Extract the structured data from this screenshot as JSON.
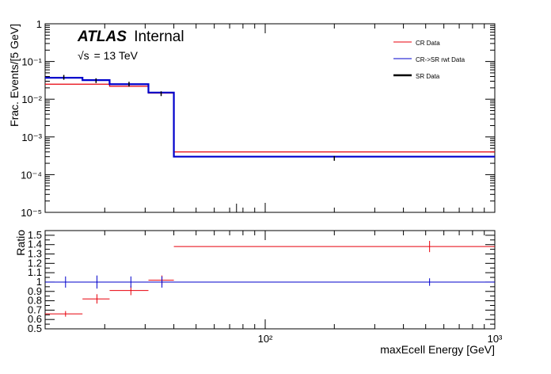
{
  "header": {
    "atlas_label": "ATLAS",
    "atlas_status": "Internal",
    "energy_sqrt": "√s",
    "energy_value": "= 13 TeV"
  },
  "chart_data": [
    {
      "type": "line",
      "style": "step-histogram",
      "panel": "top",
      "xlabel": "",
      "ylabel": "Frac. Events/[5 GeV]",
      "xscale": "log",
      "yscale": "log",
      "xlim": [
        11,
        1000
      ],
      "ylim": [
        1e-05,
        1
      ],
      "ytick_labels": [
        "10⁻⁵",
        "10⁻⁴",
        "10⁻³",
        "10⁻²",
        "10⁻¹",
        "1"
      ],
      "legend_position": "top-right",
      "x_bin_edges": [
        11,
        16,
        21,
        31,
        40,
        1000
      ],
      "series": [
        {
          "name": "CR Data",
          "color": "#e8000b",
          "drawn_as": "step",
          "values": [
            0.025,
            0.025,
            0.022,
            0.0145,
            0.0004
          ]
        },
        {
          "name": "CR->SR rwt Data",
          "color": "#0000cc",
          "drawn_as": "step",
          "values": [
            0.037,
            0.032,
            0.025,
            0.015,
            0.0003
          ]
        },
        {
          "name": "SR Data",
          "color": "#000000",
          "drawn_as": "points",
          "values": [
            0.038,
            0.031,
            0.025,
            0.014,
            0.00027
          ]
        }
      ]
    },
    {
      "type": "scatter",
      "panel": "bottom",
      "xlabel": "maxEcell Energy [GeV]",
      "ylabel": "Ratio",
      "xscale": "log",
      "xlim": [
        11,
        1000
      ],
      "ylim": [
        0.5,
        1.55
      ],
      "xtick_labels": [
        "10²",
        "10³"
      ],
      "ytick_labels": [
        "0.5",
        "0.6",
        "0.7",
        "0.8",
        "0.9",
        "1",
        "1.1",
        "1.2",
        "1.3",
        "1.4",
        "1.5"
      ],
      "reference_line": 1.0,
      "series": [
        {
          "name": "CR Data",
          "color": "#e8000b",
          "x": [
            13.5,
            18.5,
            26,
            35.5,
            520
          ],
          "xlow": [
            11,
            16,
            21,
            31,
            40
          ],
          "xhigh": [
            16,
            21,
            31,
            40,
            1000
          ],
          "y": [
            0.66,
            0.82,
            0.91,
            1.02,
            1.38
          ],
          "yerr": [
            0.03,
            0.05,
            0.05,
            0.05,
            0.06
          ]
        },
        {
          "name": "CR->SR rwt Data",
          "color": "#0000cc",
          "x": [
            13.5,
            18.5,
            26,
            35.5,
            520
          ],
          "y": [
            1.0,
            1.0,
            1.0,
            1.0,
            1.0
          ],
          "yerr": [
            0.06,
            0.07,
            0.06,
            0.06,
            0.04
          ]
        }
      ]
    }
  ]
}
